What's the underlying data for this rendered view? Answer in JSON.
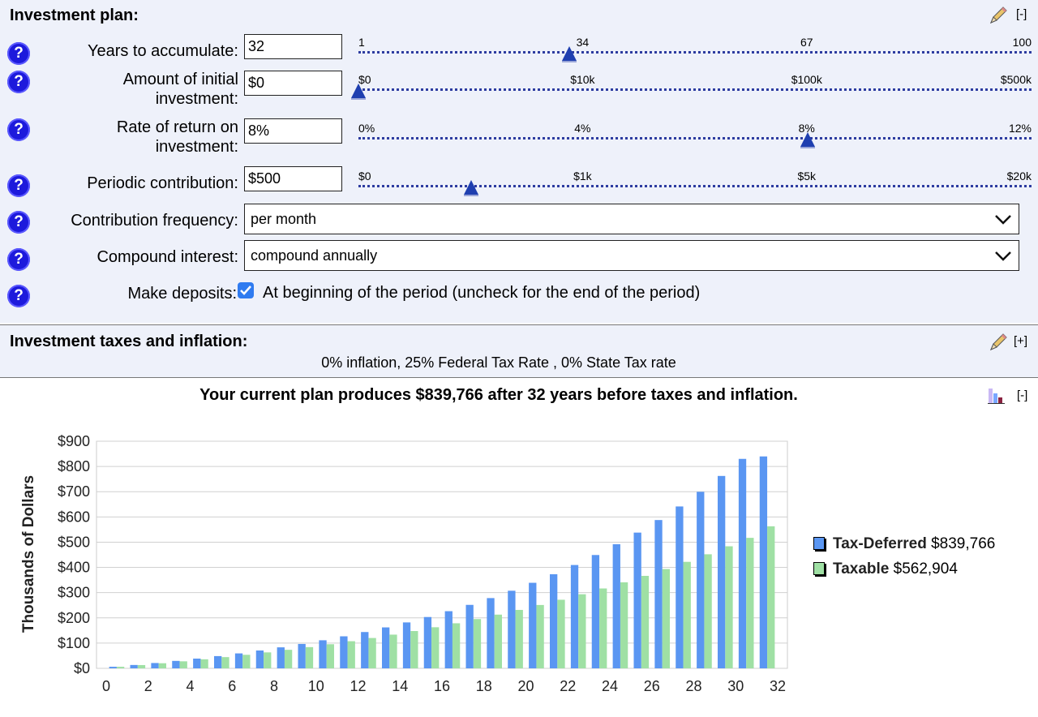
{
  "plan": {
    "title": "Investment plan:",
    "collapse_label": "[-]",
    "years": {
      "label": "Years to accumulate:",
      "value": "32",
      "ticks": [
        "1",
        "34",
        "67",
        "100"
      ],
      "level": 0.313
    },
    "initial": {
      "label": "Amount of initial investment:",
      "value": "$0",
      "ticks": [
        "$0",
        "$10k",
        "$100k",
        "$500k"
      ],
      "level": 0.0
    },
    "rate": {
      "label": "Rate of return on investment:",
      "value": "8%",
      "ticks": [
        "0%",
        "4%",
        "8%",
        "12%"
      ],
      "level": 0.667
    },
    "contribution": {
      "label": "Periodic contribution:",
      "value": "$500",
      "ticks": [
        "$0",
        "$1k",
        "$5k",
        "$20k"
      ],
      "level": 0.167
    },
    "frequency": {
      "label": "Contribution frequency:",
      "value": "per month"
    },
    "compound": {
      "label": "Compound interest:",
      "value": "compound annually"
    },
    "deposits": {
      "label": "Make deposits:",
      "checked": true,
      "description": "At beginning of the period (uncheck for the end of the period)"
    },
    "help_glyph": "?"
  },
  "taxes": {
    "title": "Investment taxes and inflation:",
    "expand_label": "[+]",
    "summary": "0% inflation, 25% Federal Tax Rate , 0% State Tax rate"
  },
  "result": {
    "headline": "Your current plan produces $839,766 after 32 years before taxes and inflation.",
    "collapse_label": "[-]"
  },
  "chart_data": {
    "type": "bar",
    "ylabel": "Thousands of Dollars",
    "xlabel": "",
    "ylim": [
      0,
      900
    ],
    "xlim": [
      0,
      32
    ],
    "y_ticks": [
      "$0",
      "$100",
      "$200",
      "$300",
      "$400",
      "$500",
      "$600",
      "$700",
      "$800",
      "$900"
    ],
    "x_ticks": [
      "0",
      "2",
      "4",
      "6",
      "8",
      "10",
      "12",
      "14",
      "16",
      "18",
      "20",
      "22",
      "24",
      "26",
      "28",
      "30",
      "32"
    ],
    "grid": true,
    "legend_position": "right",
    "categories": [
      1,
      2,
      3,
      4,
      5,
      6,
      7,
      8,
      9,
      10,
      11,
      12,
      13,
      14,
      15,
      16,
      17,
      18,
      19,
      20,
      21,
      22,
      23,
      24,
      25,
      26,
      27,
      28,
      29,
      30,
      31,
      32
    ],
    "series": [
      {
        "name": "Tax-Deferred",
        "total": "$839,766",
        "color": "#5a96f2",
        "values": [
          6.2,
          13.3,
          21.1,
          29.5,
          38.6,
          48.5,
          59.2,
          70.7,
          83.2,
          96.6,
          111.2,
          126.9,
          143.9,
          162.2,
          182.0,
          203.4,
          226.5,
          251.5,
          278.4,
          307.5,
          339.0,
          372.9,
          409.5,
          449.1,
          491.8,
          537.9,
          587.7,
          641.5,
          699.6,
          762.4,
          830.1,
          839.8
        ]
      },
      {
        "name": "Taxable",
        "total": "$562,904",
        "color": "#9fe0a4",
        "values": [
          6.2,
          13.0,
          20.2,
          27.8,
          35.9,
          44.5,
          53.6,
          63.2,
          73.4,
          84.1,
          95.5,
          107.5,
          120.2,
          133.6,
          147.8,
          162.8,
          178.6,
          195.3,
          212.9,
          231.5,
          251.1,
          271.8,
          293.6,
          316.6,
          340.9,
          366.5,
          393.5,
          422.0,
          452.0,
          483.7,
          517.1,
          562.9
        ]
      }
    ]
  }
}
